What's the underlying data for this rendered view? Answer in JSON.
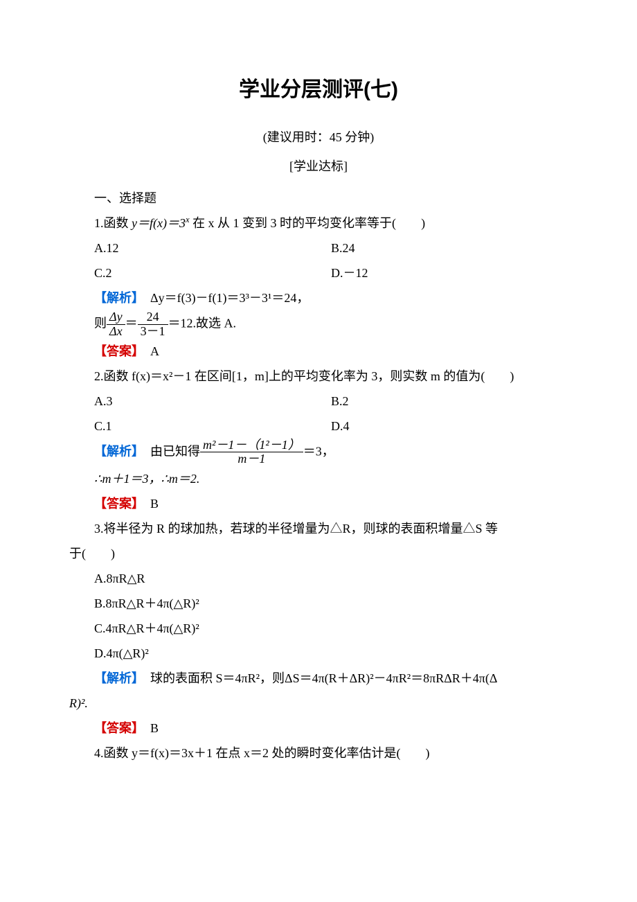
{
  "title": "学业分层测评(七)",
  "subtitle": "(建议用时：45 分钟)",
  "section_label": "[学业达标]",
  "section_heading": "一、选择题",
  "colors": {
    "analysis_label": "#0066d6",
    "answer_label": "#d40000",
    "text": "#000000",
    "background": "#ffffff"
  },
  "labels": {
    "analysis": "【解析】",
    "answer": "【答案】"
  },
  "q1": {
    "stem_pre": "1.函数 ",
    "stem_eq": "y＝f(x)＝3",
    "stem_sup": "x",
    "stem_mid": " 在 x 从 1 变到 3 时的平均变化率等于(",
    "stem_post": ")",
    "options": {
      "A": "A.12",
      "B": "B.24",
      "C": "C.2",
      "D": "D.－12"
    },
    "analysis_text": "Δy＝f(3)－f(1)＝3³－3¹＝24，",
    "frac_prefix": "则",
    "frac_num": "Δy",
    "frac_den": "Δx",
    "frac_eq": "＝",
    "frac2_num": "24",
    "frac2_den": "3－1",
    "frac_suffix": "＝12.故选 A.",
    "answer": "A"
  },
  "q2": {
    "stem": "2.函数 f(x)＝x²－1 在区间[1，m]上的平均变化率为 3，则实数 m 的值为(　　)",
    "options": {
      "A": "A.3",
      "B": "B.2",
      "C": "C.1",
      "D": "D.4"
    },
    "analysis_pre": "由已知得",
    "frac_num": "m²－1－（1²－1）",
    "frac_den": "m－1",
    "analysis_post": "＝3，",
    "conclusion": "∴m＋1＝3，∴m＝2.",
    "answer": "B"
  },
  "q3": {
    "stem_line1": "3.将半径为 R 的球加热，若球的半径增量为△R，则球的表面积增量△S 等",
    "stem_line2": "于(　　)",
    "options": {
      "A": "A.8πR△R",
      "B": "B.8πR△R＋4π(△R)²",
      "C": "C.4πR△R＋4π(△R)²",
      "D": "D.4π(△R)²"
    },
    "analysis_l1": "球的表面积 S＝4πR²，则ΔS＝4π(R＋ΔR)²－4πR²＝8πRΔR＋4π(Δ",
    "analysis_l2": "R)².",
    "answer": "B"
  },
  "q4": {
    "stem": "4.函数 y＝f(x)＝3x＋1 在点 x＝2 处的瞬时变化率估计是(　　)"
  }
}
